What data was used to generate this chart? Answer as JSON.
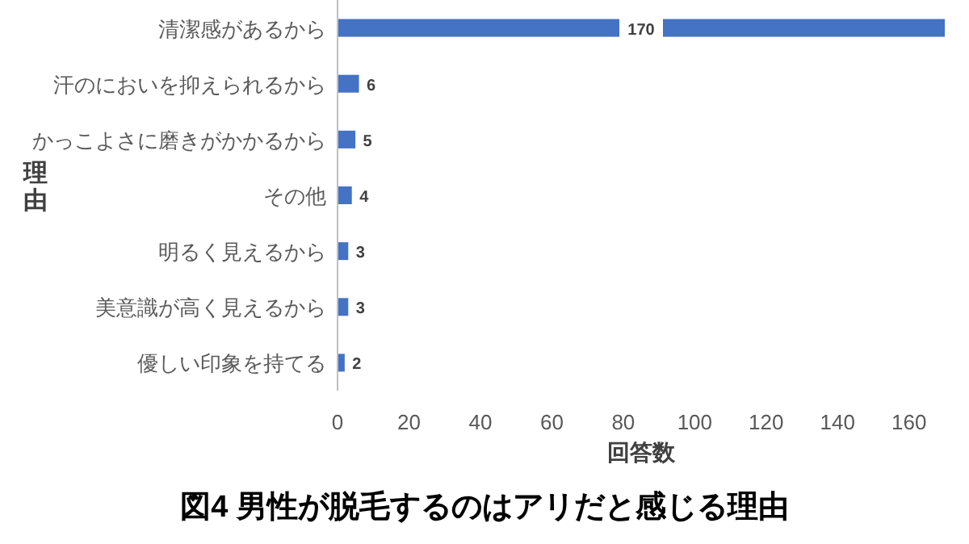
{
  "chart_data": {
    "type": "bar",
    "orientation": "horizontal",
    "title": "図4 男性が脱毛するのはアリだと感じる理由",
    "xlabel": "回答数",
    "ylabel": "理由",
    "categories": [
      "清潔感があるから",
      "汗のにおいを抑えられるから",
      "かっこよさに磨きがかかるから",
      "その他",
      "明るく見えるから",
      "美意識が高く見えるから",
      "優しい印象を持てる"
    ],
    "values": [
      170,
      6,
      5,
      4,
      3,
      3,
      2
    ],
    "color": "#4472c4",
    "xlim": [
      0,
      170
    ],
    "xticks": [
      0,
      20,
      40,
      60,
      80,
      100,
      120,
      140,
      160
    ],
    "data_labels": true,
    "grid": false
  }
}
